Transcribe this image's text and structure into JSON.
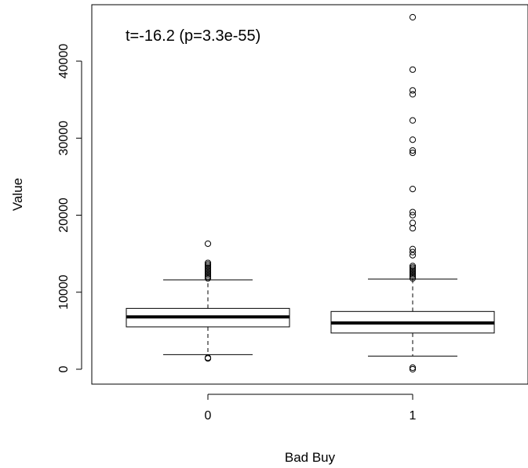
{
  "chart_data": {
    "type": "boxplot",
    "xlabel": "Bad Buy",
    "ylabel": "Value",
    "annotation": "t=-16.2 (p=3.3e-55)",
    "categories": [
      "0",
      "1"
    ],
    "y_ticks": [
      0,
      10000,
      20000,
      30000,
      40000
    ],
    "y_tick_labels": [
      "0",
      "10000",
      "20000",
      "30000",
      "40000"
    ],
    "ylim": [
      -2000,
      47000
    ],
    "series": [
      {
        "category": "0",
        "whisker_low": 1900,
        "q1": 5500,
        "median": 6800,
        "q3": 7900,
        "whisker_high": 11600,
        "outliers": [
          1400,
          1500,
          11800,
          12000,
          12200,
          12400,
          12600,
          12800,
          13000,
          13200,
          13400,
          13600,
          13800,
          16300
        ]
      },
      {
        "category": "1",
        "whisker_low": 1700,
        "q1": 4700,
        "median": 6000,
        "q3": 7500,
        "whisker_high": 11700,
        "outliers": [
          0,
          200,
          11800,
          12000,
          12200,
          12400,
          12600,
          12800,
          13000,
          13200,
          13400,
          14800,
          15200,
          15600,
          18300,
          19000,
          20000,
          20400,
          23400,
          28100,
          28400,
          29800,
          32300,
          35700,
          36200,
          38900,
          45700
        ]
      }
    ]
  }
}
